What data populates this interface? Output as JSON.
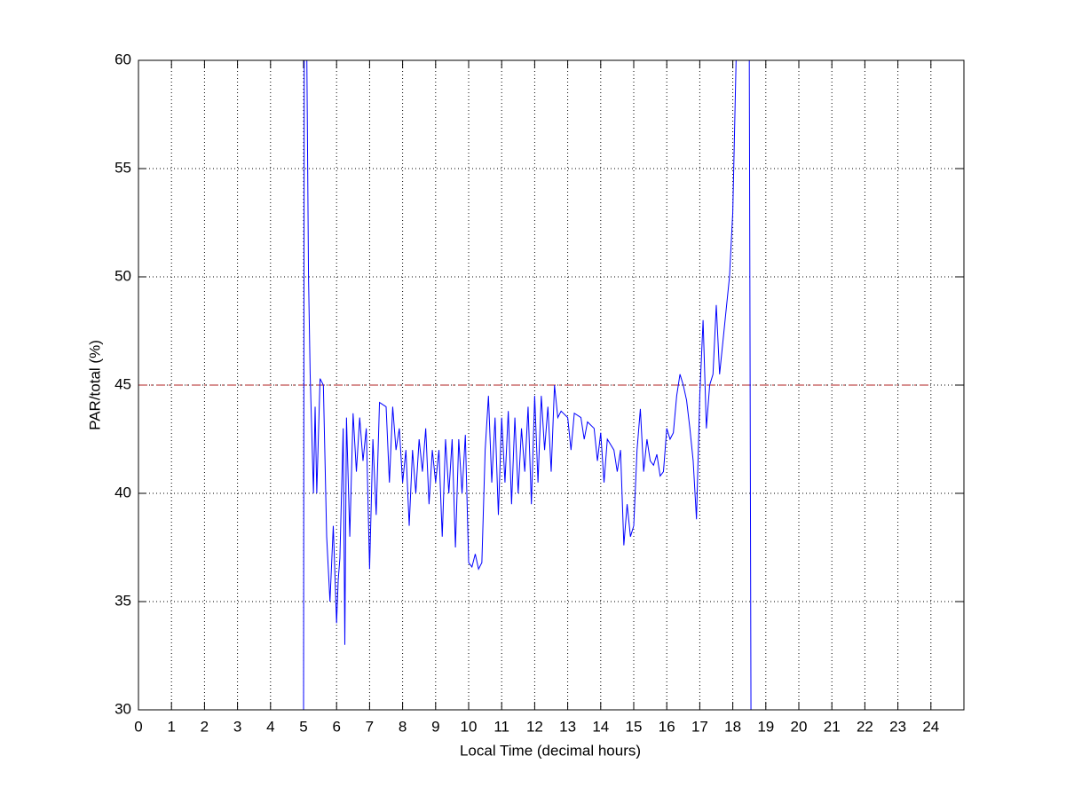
{
  "chart_data": {
    "type": "line",
    "xlabel": "Local Time (decimal hours)",
    "ylabel": "PAR/total (%)",
    "xlim": [
      0,
      25
    ],
    "ylim": [
      30,
      60
    ],
    "xticks": [
      0,
      1,
      2,
      3,
      4,
      5,
      6,
      7,
      8,
      9,
      10,
      11,
      12,
      13,
      14,
      15,
      16,
      17,
      18,
      19,
      20,
      21,
      22,
      23,
      24
    ],
    "yticks": [
      30,
      35,
      40,
      45,
      50,
      55,
      60
    ],
    "grid": true,
    "series": [
      {
        "color": "#0000ff",
        "x": [
          5.0,
          5.02,
          5.1,
          5.15,
          5.2,
          5.3,
          5.35,
          5.4,
          5.5,
          5.6,
          5.7,
          5.8,
          5.9,
          6.0,
          6.05,
          6.1,
          6.2,
          6.25,
          6.3,
          6.4,
          6.5,
          6.6,
          6.7,
          6.8,
          6.9,
          7.0,
          7.1,
          7.2,
          7.3,
          7.5,
          7.6,
          7.7,
          7.8,
          7.9,
          8.0,
          8.1,
          8.2,
          8.3,
          8.4,
          8.5,
          8.6,
          8.7,
          8.8,
          8.9,
          9.0,
          9.1,
          9.2,
          9.3,
          9.4,
          9.5,
          9.6,
          9.7,
          9.8,
          9.9,
          10.0,
          10.1,
          10.2,
          10.3,
          10.4,
          10.5,
          10.6,
          10.7,
          10.8,
          10.9,
          11.0,
          11.1,
          11.2,
          11.3,
          11.4,
          11.5,
          11.6,
          11.7,
          11.8,
          11.9,
          12.0,
          12.1,
          12.2,
          12.3,
          12.4,
          12.5,
          12.6,
          12.7,
          12.8,
          13.0,
          13.1,
          13.2,
          13.4,
          13.5,
          13.6,
          13.8,
          13.9,
          14.0,
          14.1,
          14.2,
          14.4,
          14.5,
          14.6,
          14.7,
          14.8,
          14.9,
          15.0,
          15.1,
          15.2,
          15.3,
          15.4,
          15.5,
          15.6,
          15.7,
          15.8,
          15.9,
          16.0,
          16.1,
          16.2,
          16.3,
          16.4,
          16.5,
          16.6,
          16.7,
          16.8,
          16.9,
          17.0,
          17.1,
          17.2,
          17.3,
          17.4,
          17.5,
          17.6,
          17.7,
          17.8,
          17.9,
          18.0,
          18.1,
          18.5,
          18.55
        ],
        "values": [
          30,
          60,
          60,
          50,
          45.5,
          40,
          44,
          40,
          45.3,
          45,
          38,
          35,
          38.5,
          34,
          36,
          37,
          43,
          33,
          43.5,
          38,
          43.7,
          41,
          43.5,
          41.5,
          43,
          36.5,
          42.5,
          39,
          44.2,
          44,
          40.5,
          44,
          42,
          43,
          40.5,
          42,
          38.5,
          42,
          40,
          42.5,
          41,
          43,
          39.5,
          42,
          40.5,
          42,
          38,
          42.5,
          40,
          42.5,
          37.5,
          42.5,
          40,
          42.7,
          36.8,
          36.6,
          37.2,
          36.5,
          36.8,
          42,
          44.5,
          40.5,
          43.5,
          39,
          43.5,
          40.5,
          43.8,
          39.5,
          43.5,
          40,
          43,
          41,
          44,
          39.5,
          44.5,
          40.5,
          44.5,
          42,
          44,
          41,
          45,
          43.5,
          43.8,
          43.5,
          42,
          43.7,
          43.5,
          42.5,
          43.3,
          43,
          41.5,
          42.8,
          40.5,
          42.5,
          42,
          41,
          42,
          37.6,
          39.5,
          38,
          38.5,
          42,
          43.9,
          41,
          42.5,
          41.5,
          41.3,
          41.8,
          40.8,
          41,
          43,
          42.5,
          42.8,
          44.5,
          45.5,
          45,
          44.3,
          43,
          41.5,
          38.8,
          44.5,
          48,
          43,
          45,
          45.5,
          48.7,
          45.5,
          47,
          48.5,
          50,
          53,
          60,
          60,
          30
        ]
      }
    ],
    "hline": {
      "y": 45,
      "x": [
        0,
        24
      ],
      "color": "#b22222"
    }
  }
}
